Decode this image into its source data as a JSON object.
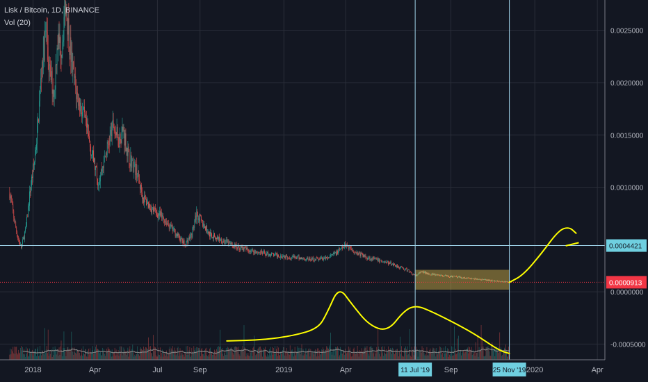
{
  "chart_data": {
    "type": "candlestick",
    "title": "Lisk / Bitcoin, 1D, BINANCE",
    "indicator": "Vol (20)",
    "colors": {
      "up": "#26a69a",
      "down": "#ef5350",
      "background": "#131722",
      "grid": "#2a2e39",
      "crosshair": "#9fd4ea",
      "annotation": "#ffff00",
      "ma": "#7f7f7f",
      "highlight_box": "#ffd54f"
    },
    "x_tick_labels": [
      "2018",
      "Apr",
      "Jul",
      "Sep",
      "2019",
      "Apr",
      "Sep",
      "2020",
      "Apr"
    ],
    "x_ticks": [
      "2018-01-01",
      "2018-04-01",
      "2018-07-01",
      "2018-09-01",
      "2019-01-01",
      "2019-04-01",
      "2019-09-01",
      "2020-01-01",
      "2020-04-01"
    ],
    "xlim": [
      "2017-11-14",
      "2020-04-12"
    ],
    "y_tick_labels": [
      "0.0025000",
      "0.0020000",
      "0.0015000",
      "0.0010000",
      "0.0000000",
      "-0.0005000"
    ],
    "y_ticks": [
      0.0025,
      0.002,
      0.0015,
      0.001,
      0.0,
      -0.0005
    ],
    "ylim": [
      -0.00065,
      0.00279
    ],
    "grid": true,
    "price_path": [
      [
        "2017-11-28",
        0.00095
      ],
      [
        "2017-12-05",
        0.00068
      ],
      [
        "2017-12-10",
        0.00052
      ],
      [
        "2017-12-15",
        0.00042
      ],
      [
        "2017-12-22",
        0.00062
      ],
      [
        "2017-12-28",
        0.00098
      ],
      [
        "2018-01-03",
        0.00125
      ],
      [
        "2018-01-08",
        0.0016
      ],
      [
        "2018-01-14",
        0.0022
      ],
      [
        "2018-01-20",
        0.0025
      ],
      [
        "2018-01-25",
        0.0021
      ],
      [
        "2018-02-01",
        0.0019
      ],
      [
        "2018-02-05",
        0.0024
      ],
      [
        "2018-02-12",
        0.00235
      ],
      [
        "2018-02-17",
        0.0028
      ],
      [
        "2018-02-20",
        0.0026
      ],
      [
        "2018-02-26",
        0.0022
      ],
      [
        "2018-03-05",
        0.0019
      ],
      [
        "2018-03-15",
        0.0017
      ],
      [
        "2018-03-25",
        0.0014
      ],
      [
        "2018-04-06",
        0.00105
      ],
      [
        "2018-04-12",
        0.0012
      ],
      [
        "2018-04-20",
        0.0014
      ],
      [
        "2018-04-28",
        0.0016
      ],
      [
        "2018-05-05",
        0.00145
      ],
      [
        "2018-05-12",
        0.00155
      ],
      [
        "2018-05-20",
        0.0013
      ],
      [
        "2018-06-01",
        0.00115
      ],
      [
        "2018-06-10",
        0.0009
      ],
      [
        "2018-06-25",
        0.00078
      ],
      [
        "2018-07-10",
        0.0007
      ],
      [
        "2018-07-25",
        0.00058
      ],
      [
        "2018-08-10",
        0.00045
      ],
      [
        "2018-08-20",
        0.00055
      ],
      [
        "2018-08-27",
        0.00075
      ],
      [
        "2018-09-05",
        0.00065
      ],
      [
        "2018-09-15",
        0.00055
      ],
      [
        "2018-10-01",
        0.0005
      ],
      [
        "2018-10-20",
        0.00044
      ],
      [
        "2018-11-10",
        0.0004
      ],
      [
        "2018-12-01",
        0.00037
      ],
      [
        "2018-12-20",
        0.00035
      ],
      [
        "2019-01-15",
        0.00033
      ],
      [
        "2019-02-10",
        0.00031
      ],
      [
        "2019-03-05",
        0.00032
      ],
      [
        "2019-03-20",
        0.00038
      ],
      [
        "2019-04-01",
        0.00045
      ],
      [
        "2019-04-15",
        0.00038
      ],
      [
        "2019-05-01",
        0.00033
      ],
      [
        "2019-05-20",
        0.0003
      ],
      [
        "2019-06-10",
        0.00026
      ],
      [
        "2019-07-01",
        0.0002
      ],
      [
        "2019-07-11",
        0.00015
      ],
      [
        "2019-07-20",
        0.00019
      ],
      [
        "2019-08-10",
        0.00016
      ],
      [
        "2019-09-10",
        0.00014
      ],
      [
        "2019-10-10",
        0.00012
      ],
      [
        "2019-11-10",
        0.0001
      ],
      [
        "2019-11-25",
        9.13e-05
      ]
    ],
    "horizontal_lines": [
      {
        "value": 0.0004421,
        "label": "0.0004421",
        "style": "solid"
      },
      {
        "value": 9.13e-05,
        "label": "0.0000913",
        "style": "dotted"
      }
    ],
    "vertical_markers": [
      {
        "date": "2019-07-11",
        "label": "11 Jul '19"
      },
      {
        "date": "2019-11-25",
        "label": "25 Nov '19"
      }
    ],
    "highlight_box": {
      "x": [
        "2019-07-11",
        "2019-11-25"
      ],
      "y": [
        2e-05,
        0.00021
      ]
    },
    "annotations": {
      "volume_curve": [
        [
          "2018-10-10",
          -0.00047
        ],
        [
          "2018-12-01",
          -0.00046
        ],
        [
          "2019-01-15",
          -0.00042
        ],
        [
          "2019-02-20",
          -0.00035
        ],
        [
          "2019-03-05",
          -0.0002
        ],
        [
          "2019-03-22",
          5e-05
        ],
        [
          "2019-04-10",
          -0.00012
        ],
        [
          "2019-05-05",
          -0.00032
        ],
        [
          "2019-06-01",
          -0.00038
        ],
        [
          "2019-06-25",
          -0.00018
        ],
        [
          "2019-07-12",
          -0.00013
        ],
        [
          "2019-08-01",
          -0.00018
        ],
        [
          "2019-09-01",
          -0.00028
        ],
        [
          "2019-10-05",
          -0.0004
        ],
        [
          "2019-11-10",
          -0.00056
        ],
        [
          "2019-11-25",
          -0.00059
        ]
      ],
      "forecast_curve": [
        [
          "2019-11-25",
          9e-05
        ],
        [
          "2019-12-15",
          0.00016
        ],
        [
          "2020-01-10",
          0.00036
        ],
        [
          "2020-02-05",
          0.00059
        ],
        [
          "2020-02-20",
          0.00062
        ],
        [
          "2020-03-01",
          0.00056
        ]
      ],
      "forecast_arrow": [
        [
          "2020-02-15",
          0.00044
        ],
        [
          "2020-03-05",
          0.00047
        ]
      ]
    }
  }
}
